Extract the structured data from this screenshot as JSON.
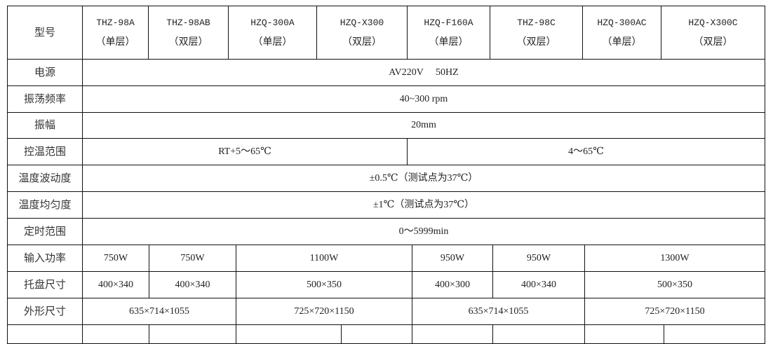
{
  "header": {
    "label": "型号",
    "models": [
      {
        "name": "THZ-98A",
        "type": "（单层）"
      },
      {
        "name": "THZ-98AB",
        "type": "（双层）"
      },
      {
        "name": "HZQ-300A",
        "type": "（单层）"
      },
      {
        "name": "HZQ-X300",
        "type": "（双层）"
      },
      {
        "name": "HZQ-F160A",
        "type": "（单层）"
      },
      {
        "name": "THZ-98C",
        "type": "（双层）"
      },
      {
        "name": "HZQ-300AC",
        "type": "（单层）"
      },
      {
        "name": "HZQ-X300C",
        "type": "（双层）"
      }
    ]
  },
  "rows": [
    {
      "label": "电源",
      "values": [
        "AV220V　 50HZ"
      ]
    },
    {
      "label": "振荡频率",
      "values": [
        "40~300 rpm"
      ]
    },
    {
      "label": "振幅",
      "values": [
        "20mm"
      ]
    },
    {
      "label": "控温范围",
      "values": [
        "RT+5～65℃",
        "4～65℃"
      ]
    },
    {
      "label": "温度波动度",
      "values": [
        "±0.5℃（测试点为37℃）"
      ]
    },
    {
      "label": "温度均匀度",
      "values": [
        "±1℃（测试点为37℃）"
      ]
    },
    {
      "label": "定时范围",
      "values": [
        "0～5999min"
      ]
    },
    {
      "label": "输入功率",
      "values": [
        "750W",
        "750W",
        "1100W",
        "950W",
        "950W",
        "1300W"
      ]
    },
    {
      "label": "托盘尺寸",
      "values": [
        "400×340",
        "400×340",
        "500×350",
        "400×300",
        "400×340",
        "500×350"
      ]
    },
    {
      "label": "外形尺寸",
      "values": [
        "635×714×1055",
        "725×720×1150",
        "635×714×1055",
        "725×720×1150"
      ]
    }
  ]
}
